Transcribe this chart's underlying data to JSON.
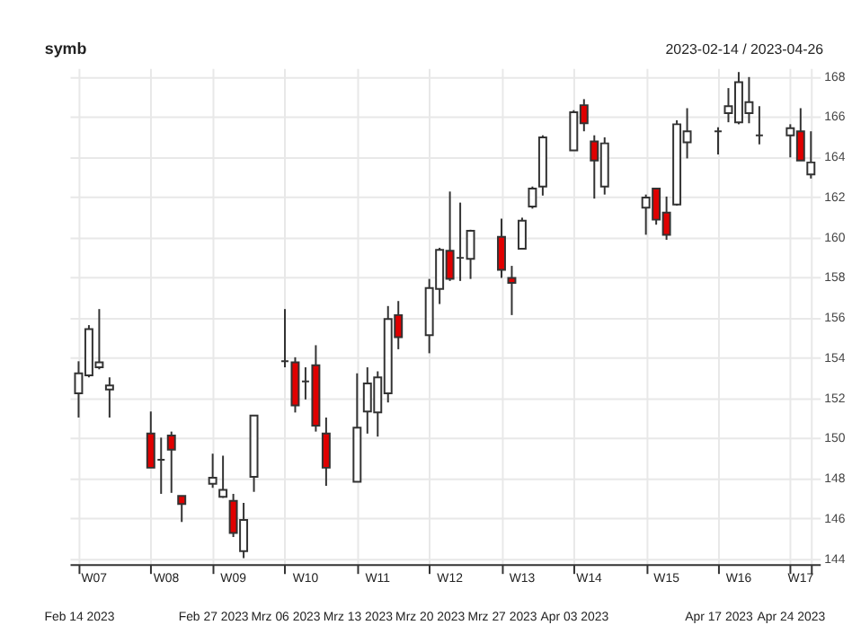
{
  "chart_data": {
    "type": "candlestick",
    "title": "symb",
    "subtitle": "2023-02-14 / 2023-04-26",
    "x": [
      "2023-02-14",
      "2023-02-15",
      "2023-02-16",
      "2023-02-17",
      "2023-02-21",
      "2023-02-22",
      "2023-02-23",
      "2023-02-24",
      "2023-02-27",
      "2023-02-28",
      "2023-03-01",
      "2023-03-02",
      "2023-03-03",
      "2023-03-06",
      "2023-03-07",
      "2023-03-08",
      "2023-03-09",
      "2023-03-10",
      "2023-03-13",
      "2023-03-14",
      "2023-03-15",
      "2023-03-16",
      "2023-03-17",
      "2023-03-20",
      "2023-03-21",
      "2023-03-22",
      "2023-03-23",
      "2023-03-24",
      "2023-03-27",
      "2023-03-28",
      "2023-03-29",
      "2023-03-30",
      "2023-03-31",
      "2023-04-03",
      "2023-04-04",
      "2023-04-05",
      "2023-04-06",
      "2023-04-10",
      "2023-04-11",
      "2023-04-12",
      "2023-04-13",
      "2023-04-14",
      "2023-04-17",
      "2023-04-18",
      "2023-04-19",
      "2023-04-20",
      "2023-04-21",
      "2023-04-24",
      "2023-04-25",
      "2023-04-26"
    ],
    "ohlc": [
      [
        152.2,
        153.8,
        151.0,
        153.2
      ],
      [
        153.1,
        155.6,
        153.0,
        155.4
      ],
      [
        153.5,
        156.4,
        153.4,
        153.75
      ],
      [
        152.4,
        153.0,
        151.0,
        152.6
      ],
      [
        150.2,
        151.3,
        148.5,
        148.5
      ],
      [
        148.9,
        150.0,
        147.2,
        148.9
      ],
      [
        150.1,
        150.3,
        147.25,
        149.4
      ],
      [
        147.1,
        147.1,
        145.8,
        146.7
      ],
      [
        147.7,
        149.2,
        147.5,
        148.0
      ],
      [
        147.05,
        149.1,
        147.0,
        147.4
      ],
      [
        146.85,
        147.2,
        145.05,
        145.25
      ],
      [
        144.35,
        146.75,
        144.0,
        145.9
      ],
      [
        148.05,
        151.1,
        147.3,
        151.1
      ],
      [
        153.8,
        156.4,
        153.5,
        153.8
      ],
      [
        153.75,
        154.0,
        151.25,
        151.6
      ],
      [
        152.8,
        153.5,
        151.9,
        152.8
      ],
      [
        153.6,
        154.6,
        150.3,
        150.6
      ],
      [
        150.2,
        151.0,
        147.6,
        148.5
      ],
      [
        147.8,
        153.2,
        147.8,
        150.5
      ],
      [
        151.3,
        153.5,
        150.2,
        152.7
      ],
      [
        151.25,
        153.3,
        150.05,
        153.0
      ],
      [
        152.2,
        156.55,
        151.75,
        155.9
      ],
      [
        156.1,
        156.8,
        154.4,
        155.0
      ],
      [
        155.1,
        157.9,
        154.2,
        157.45
      ],
      [
        157.4,
        159.45,
        156.65,
        159.35
      ],
      [
        159.3,
        162.25,
        157.8,
        157.9
      ],
      [
        158.95,
        161.7,
        157.8,
        158.95
      ],
      [
        158.9,
        160.35,
        157.9,
        160.3
      ],
      [
        160.0,
        160.9,
        157.95,
        158.35
      ],
      [
        157.95,
        158.55,
        156.1,
        157.7
      ],
      [
        159.4,
        160.95,
        159.4,
        160.8
      ],
      [
        161.5,
        162.5,
        161.4,
        162.4
      ],
      [
        162.5,
        165.05,
        162.05,
        164.95
      ],
      [
        164.3,
        166.3,
        164.3,
        166.2
      ],
      [
        166.55,
        166.85,
        165.25,
        165.65
      ],
      [
        164.75,
        165.05,
        161.9,
        163.8
      ],
      [
        162.5,
        164.95,
        162.1,
        164.65
      ],
      [
        161.45,
        162.1,
        160.1,
        161.95
      ],
      [
        162.4,
        162.4,
        160.6,
        160.85
      ],
      [
        161.2,
        162.0,
        159.85,
        160.1
      ],
      [
        161.6,
        165.8,
        161.55,
        165.6
      ],
      [
        164.7,
        166.4,
        163.9,
        165.25
      ],
      [
        165.25,
        165.45,
        164.1,
        165.25
      ],
      [
        166.15,
        167.4,
        165.7,
        166.5
      ],
      [
        165.7,
        168.2,
        165.6,
        167.7
      ],
      [
        166.15,
        167.95,
        165.65,
        166.7
      ],
      [
        165.05,
        166.5,
        164.6,
        165.05
      ],
      [
        165.05,
        165.6,
        163.95,
        165.4
      ],
      [
        165.25,
        166.4,
        163.8,
        163.8
      ],
      [
        163.1,
        165.25,
        162.9,
        163.7
      ]
    ],
    "colors": [
      "#ffffff",
      "#ffffff",
      "#ffffff",
      "#ffffff",
      "#e00000",
      "#333333",
      "#e00000",
      "#e00000",
      "#ffffff",
      "#ffffff",
      "#e00000",
      "#ffffff",
      "#ffffff",
      "#333333",
      "#e00000",
      "#333333",
      "#e00000",
      "#e00000",
      "#ffffff",
      "#ffffff",
      "#ffffff",
      "#ffffff",
      "#e00000",
      "#ffffff",
      "#ffffff",
      "#e00000",
      "#333333",
      "#ffffff",
      "#e00000",
      "#e00000",
      "#ffffff",
      "#ffffff",
      "#ffffff",
      "#ffffff",
      "#e00000",
      "#e00000",
      "#ffffff",
      "#ffffff",
      "#e00000",
      "#e00000",
      "#ffffff",
      "#ffffff",
      "#333333",
      "#ffffff",
      "#ffffff",
      "#ffffff",
      "#333333",
      "#ffffff",
      "#e00000",
      "#ffffff"
    ],
    "xlim": [
      "2023-02-14",
      "2023-04-26"
    ],
    "xticks": [
      {
        "value": "2023-02-14",
        "label": "Feb 14 2023"
      },
      {
        "value": "2023-02-21",
        "label": null
      },
      {
        "value": "2023-02-27",
        "label": "Feb 27 2023"
      },
      {
        "value": "2023-03-06",
        "label": "Mrz 06 2023"
      },
      {
        "value": "2023-03-13",
        "label": "Mrz 13 2023"
      },
      {
        "value": "2023-03-20",
        "label": "Mrz 20 2023"
      },
      {
        "value": "2023-03-27",
        "label": "Mrz 27 2023"
      },
      {
        "value": "2023-04-03",
        "label": "Apr 03 2023"
      },
      {
        "value": "2023-04-10",
        "label": null
      },
      {
        "value": "2023-04-17",
        "label": "Apr 17 2023"
      },
      {
        "value": "2023-04-24",
        "label": "Apr 24 2023"
      },
      {
        "value": "2023-04-26",
        "label": null
      }
    ],
    "ylim": [
      143.7,
      168.4
    ],
    "yticks": [
      144,
      146,
      148,
      150,
      152,
      154,
      156,
      158,
      160,
      162,
      164,
      166,
      168
    ],
    "annotations": [
      "W07",
      "W08",
      "W09",
      "W10",
      "W11",
      "W12",
      "W13",
      "W14",
      "W15",
      "W16",
      "W17"
    ],
    "grid": true
  }
}
